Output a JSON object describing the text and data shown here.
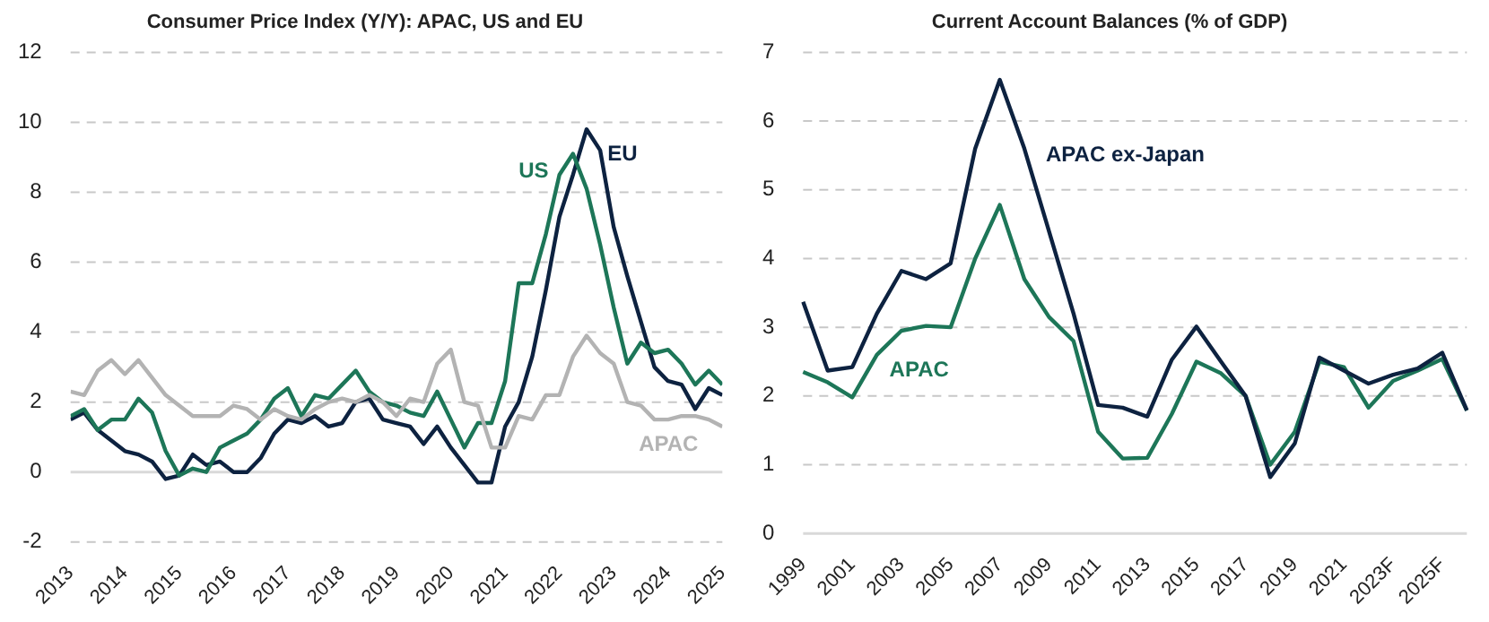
{
  "chart_data": [
    {
      "type": "line",
      "title": "Consumer Price Index (Y/Y): APAC, US and EU",
      "x": [
        2013,
        2013.25,
        2013.5,
        2013.75,
        2014,
        2014.25,
        2014.5,
        2014.75,
        2015,
        2015.25,
        2015.5,
        2015.75,
        2016,
        2016.25,
        2016.5,
        2016.75,
        2017,
        2017.25,
        2017.5,
        2017.75,
        2018,
        2018.25,
        2018.5,
        2018.75,
        2019,
        2019.25,
        2019.5,
        2019.75,
        2020,
        2020.25,
        2020.5,
        2020.75,
        2021,
        2021.25,
        2021.5,
        2021.75,
        2022,
        2022.25,
        2022.5,
        2022.75,
        2023,
        2023.25,
        2023.5,
        2023.75,
        2024,
        2024.25,
        2024.5,
        2024.75,
        2025
      ],
      "series": [
        {
          "name": "APAC",
          "color": "#b3b3b3",
          "values": [
            2.3,
            2.2,
            2.9,
            3.2,
            2.8,
            3.2,
            2.7,
            2.2,
            1.9,
            1.6,
            1.6,
            1.6,
            1.9,
            1.8,
            1.5,
            1.8,
            1.6,
            1.5,
            1.8,
            2.0,
            2.1,
            2.0,
            2.2,
            2.0,
            1.6,
            2.1,
            2.0,
            3.1,
            3.5,
            2.0,
            1.9,
            0.7,
            0.7,
            1.6,
            1.5,
            2.2,
            2.2,
            3.3,
            3.9,
            3.4,
            3.1,
            2.0,
            1.9,
            1.5,
            1.5,
            1.6,
            1.6,
            1.5,
            1.3
          ]
        },
        {
          "name": "US",
          "color": "#1d7658",
          "values": [
            1.6,
            1.8,
            1.2,
            1.5,
            1.5,
            2.1,
            1.7,
            0.6,
            -0.1,
            0.1,
            0.0,
            0.7,
            0.9,
            1.1,
            1.5,
            2.1,
            2.4,
            1.6,
            2.2,
            2.1,
            2.5,
            2.9,
            2.3,
            2.0,
            1.9,
            1.7,
            1.6,
            2.3,
            1.5,
            0.7,
            1.4,
            1.4,
            2.6,
            5.4,
            5.4,
            6.8,
            8.5,
            9.1,
            8.1,
            6.5,
            4.7,
            3.1,
            3.7,
            3.4,
            3.5,
            3.1,
            2.5,
            2.9,
            2.5
          ]
        },
        {
          "name": "EU",
          "color": "#0d2240",
          "values": [
            1.5,
            1.7,
            1.2,
            0.9,
            0.6,
            0.5,
            0.3,
            -0.2,
            -0.1,
            0.5,
            0.2,
            0.3,
            0.0,
            0.0,
            0.4,
            1.1,
            1.5,
            1.4,
            1.6,
            1.3,
            1.4,
            2.0,
            2.1,
            1.5,
            1.4,
            1.3,
            0.8,
            1.3,
            0.7,
            0.2,
            -0.3,
            -0.3,
            1.3,
            2.0,
            3.3,
            5.2,
            7.3,
            8.5,
            9.8,
            9.2,
            7.0,
            5.6,
            4.3,
            3.0,
            2.6,
            2.5,
            1.8,
            2.4,
            2.2
          ]
        }
      ],
      "xlim": [
        2013,
        2025
      ],
      "xticks": [
        2013,
        2014,
        2015,
        2016,
        2017,
        2018,
        2019,
        2020,
        2021,
        2022,
        2023,
        2024,
        2025
      ],
      "ylim": [
        -2,
        12
      ],
      "yticks": [
        -2,
        0,
        2,
        4,
        6,
        8,
        10,
        12
      ],
      "grid": "y",
      "legend": false,
      "marker": "none",
      "line_style": "solid"
    },
    {
      "type": "line",
      "title": "Current Account Balances (% of GDP)",
      "categories": [
        "1999",
        null,
        "2001",
        null,
        "2003",
        null,
        "2005",
        null,
        "2007",
        null,
        "2009",
        null,
        "2011",
        null,
        "2013",
        null,
        "2015",
        null,
        "2017",
        null,
        "2019",
        null,
        "2021",
        null,
        "2023F",
        null,
        "2025F",
        null
      ],
      "series": [
        {
          "name": "APAC ex-Japan",
          "color": "#0d2240",
          "values": [
            3.37,
            2.37,
            2.42,
            3.2,
            3.82,
            3.7,
            3.93,
            5.6,
            6.6,
            5.6,
            4.4,
            3.2,
            1.87,
            1.83,
            1.7,
            2.53,
            3.01,
            2.5,
            2.0,
            0.82,
            1.31,
            2.56,
            2.37,
            2.18,
            2.31,
            2.4,
            2.63,
            1.79
          ]
        },
        {
          "name": "APAC",
          "color": "#1d7658",
          "values": [
            2.35,
            2.2,
            1.98,
            2.6,
            2.95,
            3.02,
            3.0,
            4.0,
            4.78,
            3.7,
            3.15,
            2.8,
            1.48,
            1.09,
            1.1,
            1.74,
            2.5,
            2.33,
            2.0,
            1.0,
            1.48,
            2.5,
            2.42,
            1.83,
            2.22,
            2.37,
            2.54,
            1.79
          ]
        }
      ],
      "ylim": [
        0,
        7
      ],
      "yticks": [
        0,
        1,
        2,
        3,
        4,
        5,
        6,
        7
      ],
      "grid": "y",
      "legend": false,
      "marker": "none",
      "line_style": "solid"
    }
  ]
}
